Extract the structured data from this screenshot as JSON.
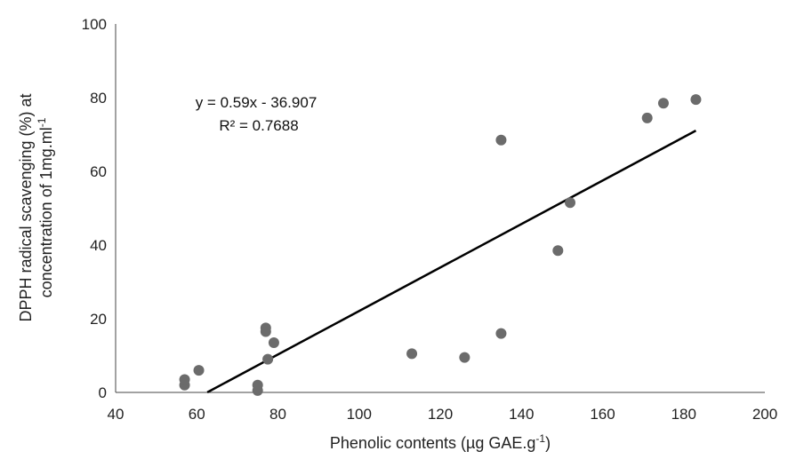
{
  "chart_data": {
    "type": "scatter",
    "xlabel": "Phenolic contents (µg GAE.g",
    "xlabel_sup": "-1",
    "xlabel_end": ")",
    "ylabel_line1": "DPPH radical scavenging (%) at",
    "ylabel_line2": "concentration of 1mg.ml",
    "ylabel_sup": "-1",
    "xlim": [
      40,
      200
    ],
    "ylim": [
      0,
      100
    ],
    "xticks": [
      40,
      60,
      80,
      100,
      120,
      140,
      160,
      180,
      200
    ],
    "yticks": [
      0,
      20,
      40,
      60,
      80,
      100
    ],
    "grid": false,
    "legend": "none",
    "points": [
      {
        "x": 57,
        "y": 2
      },
      {
        "x": 57,
        "y": 3.5
      },
      {
        "x": 60.5,
        "y": 6
      },
      {
        "x": 75,
        "y": 0.5
      },
      {
        "x": 75,
        "y": 2
      },
      {
        "x": 77,
        "y": 16.5
      },
      {
        "x": 77,
        "y": 17.5
      },
      {
        "x": 77.5,
        "y": 9
      },
      {
        "x": 79,
        "y": 13.5
      },
      {
        "x": 113,
        "y": 10.5
      },
      {
        "x": 126,
        "y": 9.5
      },
      {
        "x": 135,
        "y": 16
      },
      {
        "x": 135,
        "y": 68.5
      },
      {
        "x": 149,
        "y": 38.5
      },
      {
        "x": 152,
        "y": 51.5
      },
      {
        "x": 171,
        "y": 74.5
      },
      {
        "x": 175,
        "y": 78.5
      },
      {
        "x": 183,
        "y": 79.5
      }
    ],
    "trendline": {
      "slope": 0.59,
      "intercept": -36.907,
      "x_range": [
        62.6,
        183
      ]
    },
    "annotations": {
      "equation": "y = 0.59x - 36.907",
      "r_squared": "R² = 0.7688"
    },
    "colors": {
      "point": "#6b6b6b",
      "trendline": "#000000",
      "axis": "#444444"
    }
  }
}
